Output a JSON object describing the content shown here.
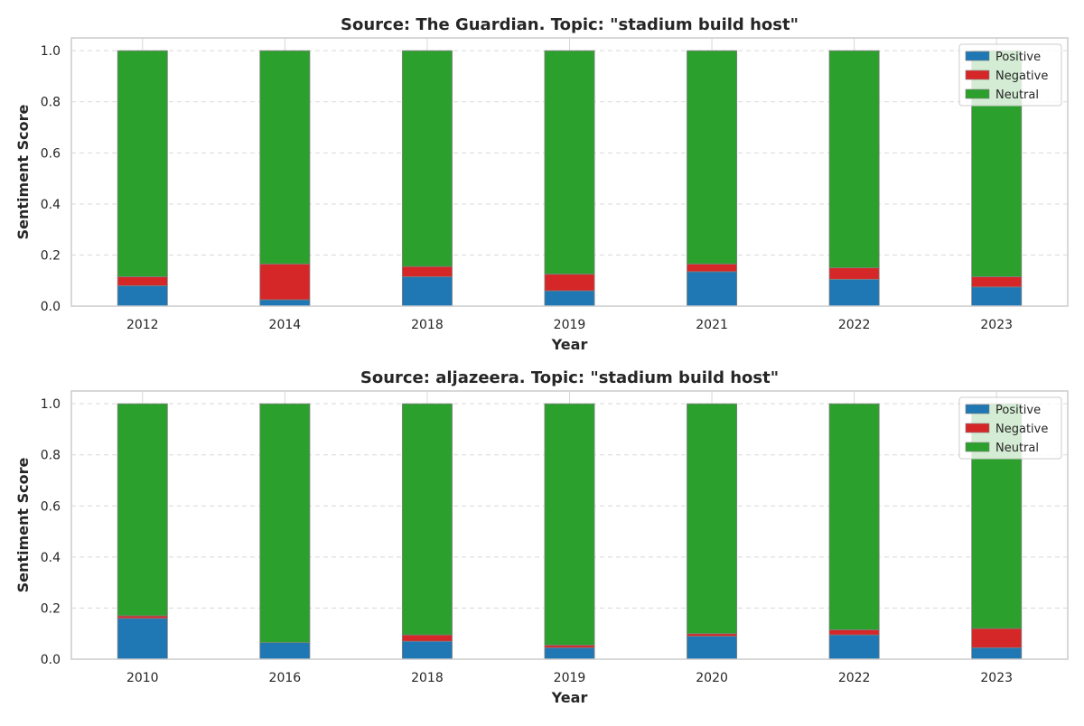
{
  "colors": {
    "positive": "#1f77b4",
    "negative": "#d62728",
    "neutral": "#2ca02c",
    "grid": "#d9d9d9",
    "frame": "#cccccc",
    "bar_edge": "#808080"
  },
  "chart_data": [
    {
      "type": "bar",
      "stacked": true,
      "title": "Source: The Guardian. Topic: \"stadium build host\"",
      "xlabel": "Year",
      "ylabel": "Sentiment Score",
      "ylim": [
        0,
        1.05
      ],
      "yticks": [
        "0.0",
        "0.2",
        "0.4",
        "0.6",
        "0.8",
        "1.0"
      ],
      "grid": true,
      "legend_position": "top-right",
      "categories": [
        "2012",
        "2014",
        "2018",
        "2019",
        "2021",
        "2022",
        "2023"
      ],
      "series": [
        {
          "name": "Positive",
          "values": [
            0.08,
            0.025,
            0.115,
            0.06,
            0.135,
            0.105,
            0.075
          ]
        },
        {
          "name": "Negative",
          "values": [
            0.035,
            0.14,
            0.04,
            0.065,
            0.03,
            0.045,
            0.04
          ]
        },
        {
          "name": "Neutral",
          "values": [
            0.885,
            0.835,
            0.845,
            0.875,
            0.835,
            0.85,
            0.885
          ]
        }
      ]
    },
    {
      "type": "bar",
      "stacked": true,
      "title": "Source: aljazeera. Topic: \"stadium build host\"",
      "xlabel": "Year",
      "ylabel": "Sentiment Score",
      "ylim": [
        0,
        1.05
      ],
      "yticks": [
        "0.0",
        "0.2",
        "0.4",
        "0.6",
        "0.8",
        "1.0"
      ],
      "grid": true,
      "legend_position": "top-right",
      "categories": [
        "2010",
        "2016",
        "2018",
        "2019",
        "2020",
        "2022",
        "2023"
      ],
      "series": [
        {
          "name": "Positive",
          "values": [
            0.16,
            0.065,
            0.07,
            0.045,
            0.09,
            0.095,
            0.045
          ]
        },
        {
          "name": "Negative",
          "values": [
            0.01,
            0.0,
            0.025,
            0.01,
            0.01,
            0.02,
            0.075
          ]
        },
        {
          "name": "Neutral",
          "values": [
            0.83,
            0.935,
            0.905,
            0.945,
            0.9,
            0.885,
            0.88
          ]
        }
      ]
    }
  ]
}
